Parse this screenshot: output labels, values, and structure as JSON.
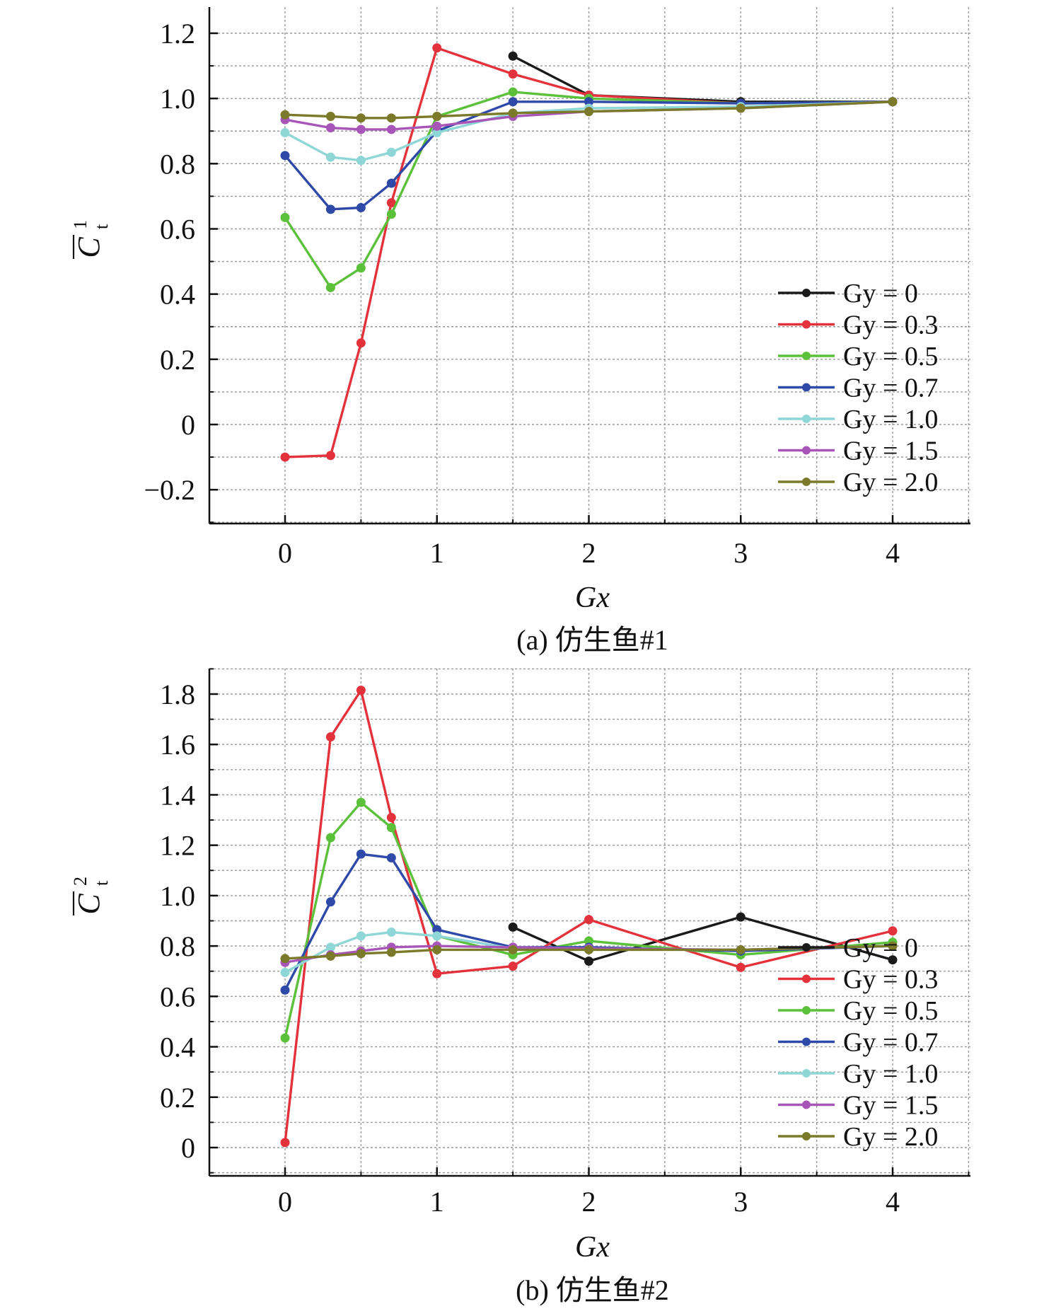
{
  "chart_data": [
    {
      "id": "a",
      "type": "line",
      "caption": "(a) 仿生鱼#1",
      "xlabel": "Gx",
      "ylabel": {
        "symbol": "C",
        "superscript": "1",
        "subscript": "t",
        "overbar": true
      },
      "xlim": [
        -0.5,
        4.5
      ],
      "ylim": [
        -0.3,
        1.3
      ],
      "xticks": [
        0,
        1,
        2,
        3,
        4
      ],
      "xtick_labels": [
        "0",
        "1",
        "2",
        "3",
        "4"
      ],
      "yticks": [
        -0.2,
        0,
        0.2,
        0.4,
        0.6,
        0.8,
        1.0,
        1.2
      ],
      "ytick_labels": [
        "−0.2",
        "0",
        "0.2",
        "0.4",
        "0.6",
        "0.8",
        "1.0",
        "1.2"
      ],
      "grid": true,
      "legend_position": "lower-right",
      "series": [
        {
          "name": "Gy = 0",
          "color": "#1a1a1a",
          "x": [
            1.5,
            2,
            3,
            4
          ],
          "values": [
            1.13,
            1.01,
            0.99,
            0.99
          ]
        },
        {
          "name": "Gy = 0.3",
          "color": "#e3323c",
          "x": [
            0,
            0.3,
            0.5,
            0.7,
            1,
            1.5,
            2,
            3,
            4
          ],
          "values": [
            -0.1,
            -0.095,
            0.25,
            0.68,
            1.155,
            1.075,
            1.01,
            0.985,
            0.99
          ]
        },
        {
          "name": "Gy = 0.5",
          "color": "#5cc13a",
          "x": [
            0,
            0.3,
            0.5,
            0.7,
            1,
            1.5,
            2,
            3,
            4
          ],
          "values": [
            0.635,
            0.42,
            0.48,
            0.645,
            0.945,
            1.02,
            1.0,
            0.985,
            0.99
          ]
        },
        {
          "name": "Gy = 0.7",
          "color": "#2f49a8",
          "x": [
            0,
            0.3,
            0.5,
            0.7,
            1,
            1.5,
            2,
            3,
            4
          ],
          "values": [
            0.825,
            0.66,
            0.665,
            0.74,
            0.9,
            0.99,
            0.99,
            0.985,
            0.99
          ]
        },
        {
          "name": "Gy = 1.0",
          "color": "#8fd6d6",
          "x": [
            0,
            0.3,
            0.5,
            0.7,
            1,
            1.5,
            2,
            3,
            4
          ],
          "values": [
            0.895,
            0.82,
            0.81,
            0.835,
            0.895,
            0.955,
            0.97,
            0.975,
            0.99
          ]
        },
        {
          "name": "Gy = 1.5",
          "color": "#a855b8",
          "x": [
            0,
            0.3,
            0.5,
            0.7,
            1,
            1.5,
            2,
            3,
            4
          ],
          "values": [
            0.935,
            0.91,
            0.905,
            0.905,
            0.915,
            0.945,
            0.96,
            0.97,
            0.99
          ]
        },
        {
          "name": "Gy = 2.0",
          "color": "#7a7a2a",
          "x": [
            0,
            0.3,
            0.5,
            0.7,
            1,
            1.5,
            2,
            3,
            4
          ],
          "values": [
            0.95,
            0.945,
            0.94,
            0.94,
            0.945,
            0.955,
            0.96,
            0.97,
            0.99
          ]
        }
      ]
    },
    {
      "id": "b",
      "type": "line",
      "caption": "(b) 仿生鱼#2",
      "xlabel": "Gx",
      "ylabel": {
        "symbol": "C",
        "superscript": "2",
        "subscript": "t",
        "overbar": true
      },
      "xlim": [
        -0.5,
        4.5
      ],
      "ylim": [
        -0.1,
        1.9
      ],
      "xticks": [
        0,
        1,
        2,
        3,
        4
      ],
      "xtick_labels": [
        "0",
        "1",
        "2",
        "3",
        "4"
      ],
      "yticks": [
        0,
        0.2,
        0.4,
        0.6,
        0.8,
        1.0,
        1.2,
        1.4,
        1.6,
        1.8
      ],
      "ytick_labels": [
        "0",
        "0.2",
        "0.4",
        "0.6",
        "0.8",
        "1.0",
        "1.2",
        "1.4",
        "1.6",
        "1.8"
      ],
      "grid": true,
      "legend_position": "lower-right",
      "series": [
        {
          "name": "Gy = 0",
          "color": "#1a1a1a",
          "x": [
            1.5,
            2,
            3,
            4
          ],
          "values": [
            0.875,
            0.74,
            0.915,
            0.745
          ]
        },
        {
          "name": "Gy = 0.3",
          "color": "#e3323c",
          "x": [
            0,
            0.3,
            0.5,
            0.7,
            1,
            1.5,
            2,
            3,
            4
          ],
          "values": [
            0.02,
            1.63,
            1.815,
            1.31,
            0.69,
            0.72,
            0.905,
            0.715,
            0.86
          ]
        },
        {
          "name": "Gy = 0.5",
          "color": "#5cc13a",
          "x": [
            0,
            0.3,
            0.5,
            0.7,
            1,
            1.5,
            2,
            3,
            4
          ],
          "values": [
            0.435,
            1.23,
            1.37,
            1.27,
            0.84,
            0.765,
            0.82,
            0.765,
            0.815
          ]
        },
        {
          "name": "Gy = 0.7",
          "color": "#2f49a8",
          "x": [
            0,
            0.3,
            0.5,
            0.7,
            1,
            1.5,
            2,
            3,
            4
          ],
          "values": [
            0.625,
            0.975,
            1.165,
            1.15,
            0.865,
            0.795,
            0.795,
            0.78,
            0.8
          ]
        },
        {
          "name": "Gy = 1.0",
          "color": "#8fd6d6",
          "x": [
            0,
            0.3,
            0.5,
            0.7,
            1,
            1.5,
            2,
            3,
            4
          ],
          "values": [
            0.695,
            0.795,
            0.84,
            0.855,
            0.84,
            0.79,
            0.79,
            0.785,
            0.8
          ]
        },
        {
          "name": "Gy = 1.5",
          "color": "#a855b8",
          "x": [
            0,
            0.3,
            0.5,
            0.7,
            1,
            1.5,
            2,
            3,
            4
          ],
          "values": [
            0.735,
            0.765,
            0.78,
            0.795,
            0.8,
            0.795,
            0.79,
            0.785,
            0.8
          ]
        },
        {
          "name": "Gy = 2.0",
          "color": "#7a7a2a",
          "x": [
            0,
            0.3,
            0.5,
            0.7,
            1,
            1.5,
            2,
            3,
            4
          ],
          "values": [
            0.75,
            0.76,
            0.77,
            0.775,
            0.785,
            0.785,
            0.785,
            0.785,
            0.8
          ]
        }
      ]
    }
  ]
}
